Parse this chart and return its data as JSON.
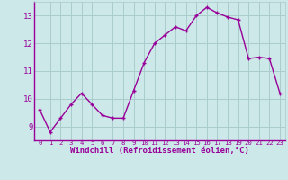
{
  "x": [
    0,
    1,
    2,
    3,
    4,
    5,
    6,
    7,
    8,
    9,
    10,
    11,
    12,
    13,
    14,
    15,
    16,
    17,
    18,
    19,
    20,
    21,
    22,
    23
  ],
  "y": [
    9.6,
    8.8,
    9.3,
    9.8,
    10.2,
    9.8,
    9.4,
    9.3,
    9.3,
    10.3,
    11.3,
    12.0,
    12.3,
    12.6,
    12.45,
    13.0,
    13.3,
    13.1,
    12.95,
    12.85,
    11.45,
    11.5,
    11.45,
    10.2
  ],
  "line_color": "#990099",
  "marker": "+",
  "marker_color": "#990099",
  "bg_color": "#cce8e8",
  "grid_color": "#aacccc",
  "xlabel": "Windchill (Refroidissement éolien,°C)",
  "xlabel_color": "#990099",
  "tick_color": "#990099",
  "ylim": [
    8.5,
    13.5
  ],
  "xlim": [
    -0.5,
    23.5
  ],
  "yticks": [
    9,
    10,
    11,
    12,
    13
  ],
  "xticks": [
    0,
    1,
    2,
    3,
    4,
    5,
    6,
    7,
    8,
    9,
    10,
    11,
    12,
    13,
    14,
    15,
    16,
    17,
    18,
    19,
    20,
    21,
    22,
    23
  ],
  "xtick_labels": [
    "0",
    "1",
    "2",
    "3",
    "4",
    "5",
    "6",
    "7",
    "8",
    "9",
    "10",
    "11",
    "12",
    "13",
    "14",
    "15",
    "16",
    "17",
    "18",
    "19",
    "20",
    "21",
    "22",
    "23"
  ],
  "font": "monospace",
  "linewidth": 1.0,
  "markersize": 3.5
}
